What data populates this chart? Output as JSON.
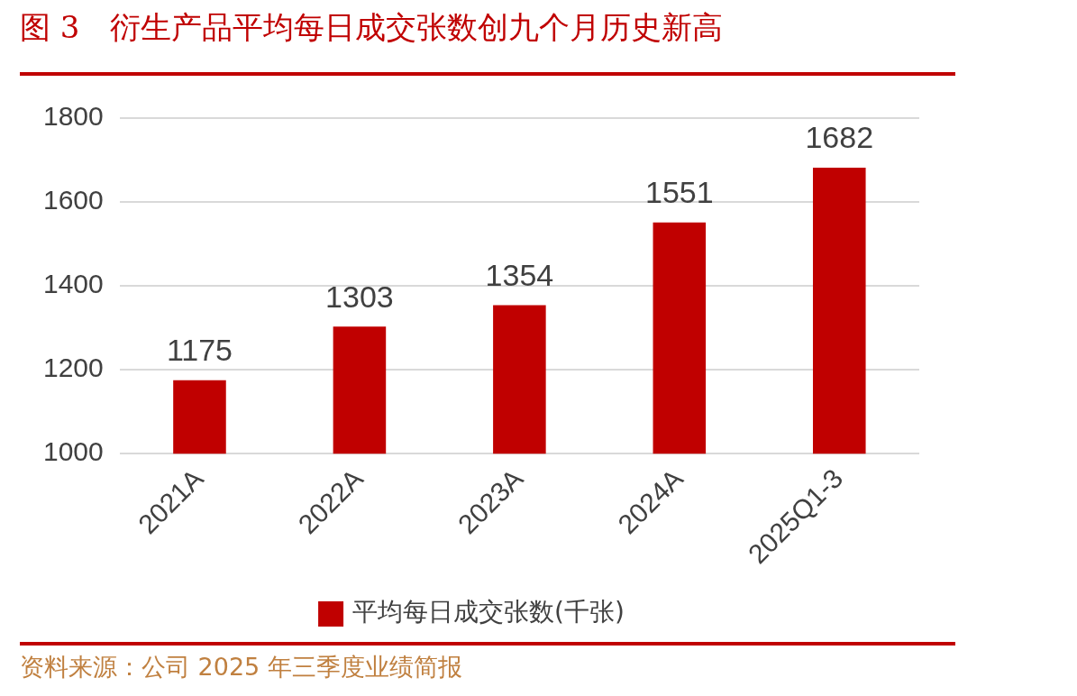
{
  "chart_data": {
    "type": "bar",
    "title": "图 3　衍生产品平均每日成交张数创九个月历史新高",
    "categories": [
      "2021A",
      "2022A",
      "2023A",
      "2024A",
      "2025Q1-3"
    ],
    "series": [
      {
        "name": "平均每日成交张数(千张)",
        "color": "#c00000",
        "values": [
          1175,
          1303,
          1354,
          1551,
          1682
        ]
      }
    ],
    "ylim": [
      1000,
      1800
    ],
    "yticks": [
      1000,
      1200,
      1400,
      1600,
      1800
    ],
    "grid": "y",
    "legend": "bottom",
    "data_labels": true,
    "annotations": [
      "资料来源：公司 2025 年三季度业绩简报"
    ]
  }
}
